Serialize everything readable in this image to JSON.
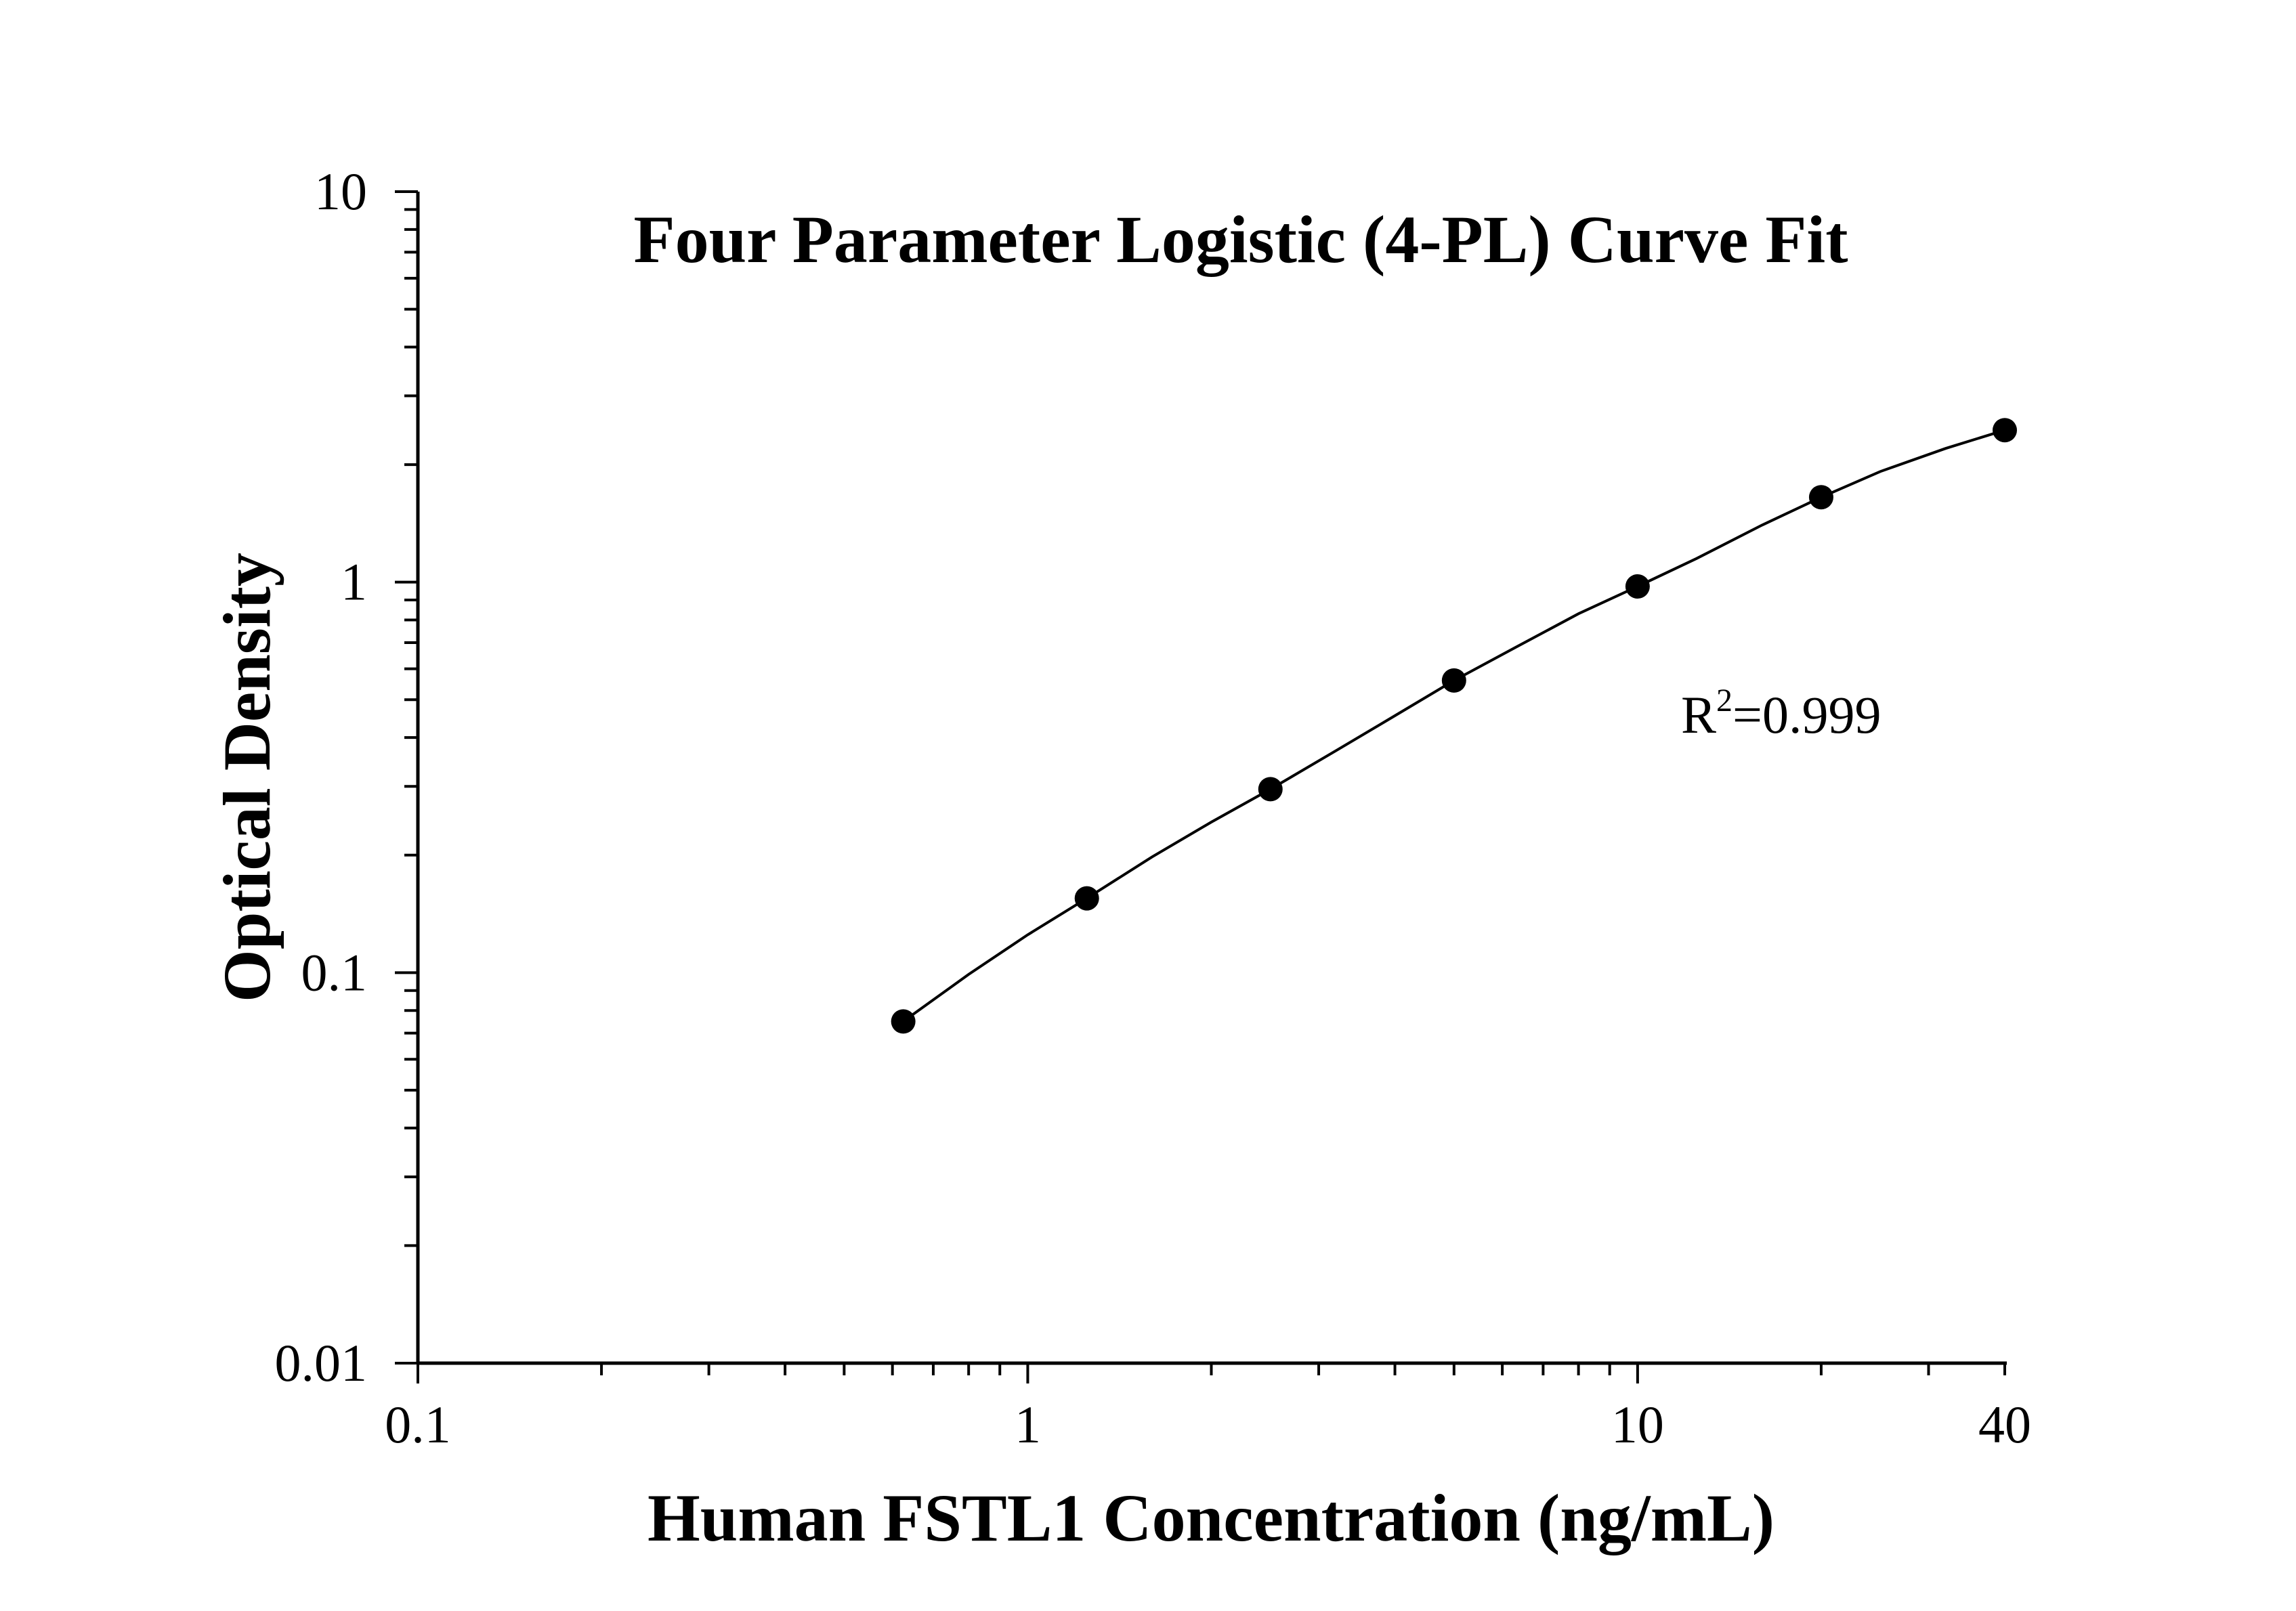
{
  "chart_data": {
    "type": "scatter",
    "title": "Four Parameter Logistic (4-PL) Curve Fit",
    "xlabel": "Human FSTL1 Concentration (ng/mL)",
    "ylabel": "Optical Density",
    "x_scale": "log",
    "y_scale": "log",
    "xlim": [
      0.1,
      40
    ],
    "ylim": [
      0.01,
      10
    ],
    "x_ticks": [
      {
        "value": 0.1,
        "label": "0.1"
      },
      {
        "value": 1,
        "label": "1"
      },
      {
        "value": 10,
        "label": "10"
      },
      {
        "value": 40,
        "label": "40"
      }
    ],
    "y_ticks": [
      {
        "value": 0.01,
        "label": "0.01"
      },
      {
        "value": 0.1,
        "label": "0.1"
      },
      {
        "value": 1,
        "label": "1"
      },
      {
        "value": 10,
        "label": "10"
      }
    ],
    "grid": false,
    "legend": null,
    "annotation": {
      "base": "R",
      "superscript": "2",
      "rest": "=0.999"
    },
    "series": [
      {
        "type": "scatter",
        "x": [
          0.625,
          1.25,
          2.5,
          5,
          10,
          20,
          40
        ],
        "y": [
          0.075,
          0.155,
          0.295,
          0.56,
          0.975,
          1.65,
          2.45
        ]
      }
    ],
    "fit_curve": {
      "type": "line",
      "x": [
        0.625,
        0.8,
        1.0,
        1.25,
        1.6,
        2.0,
        2.5,
        3.2,
        4.0,
        5.0,
        6.3,
        8.0,
        10.0,
        12.5,
        16.0,
        20.0,
        25.0,
        32.0,
        40.0
      ],
      "y": [
        0.075,
        0.099,
        0.125,
        0.155,
        0.198,
        0.243,
        0.295,
        0.37,
        0.455,
        0.56,
        0.68,
        0.83,
        0.975,
        1.15,
        1.4,
        1.65,
        1.92,
        2.2,
        2.45
      ]
    },
    "colors": {
      "ink": "#000000",
      "background": "#ffffff"
    }
  }
}
